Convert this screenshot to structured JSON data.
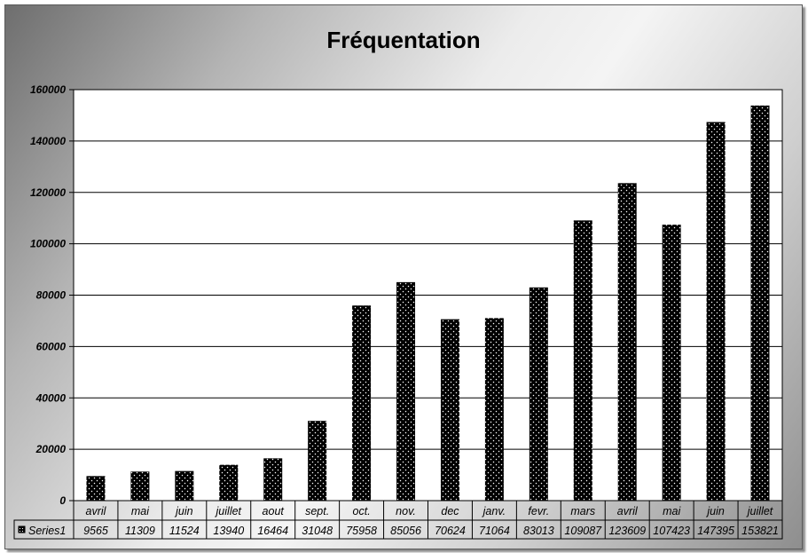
{
  "chart_data": {
    "type": "bar",
    "title": "Fréquentation",
    "xlabel": "",
    "ylabel": "",
    "categories": [
      "avril",
      "mai",
      "juin",
      "juillet",
      "aout",
      "sept.",
      "oct.",
      "nov.",
      "dec",
      "janv.",
      "fevr.",
      "mars",
      "avril",
      "mai",
      "juin",
      "juillet"
    ],
    "series": [
      {
        "name": "Series1",
        "values": [
          9565,
          11309,
          11524,
          13940,
          16464,
          31048,
          75958,
          85056,
          70624,
          71064,
          83013,
          109087,
          123609,
          107423,
          147395,
          153821
        ]
      }
    ],
    "ylim": [
      0,
      160000
    ],
    "yticks": [
      "0",
      "20000",
      "40000",
      "60000",
      "80000",
      "100000",
      "120000",
      "140000",
      "160000"
    ],
    "grid": "horizontal",
    "data_table": true,
    "bar_color": "#000000"
  }
}
